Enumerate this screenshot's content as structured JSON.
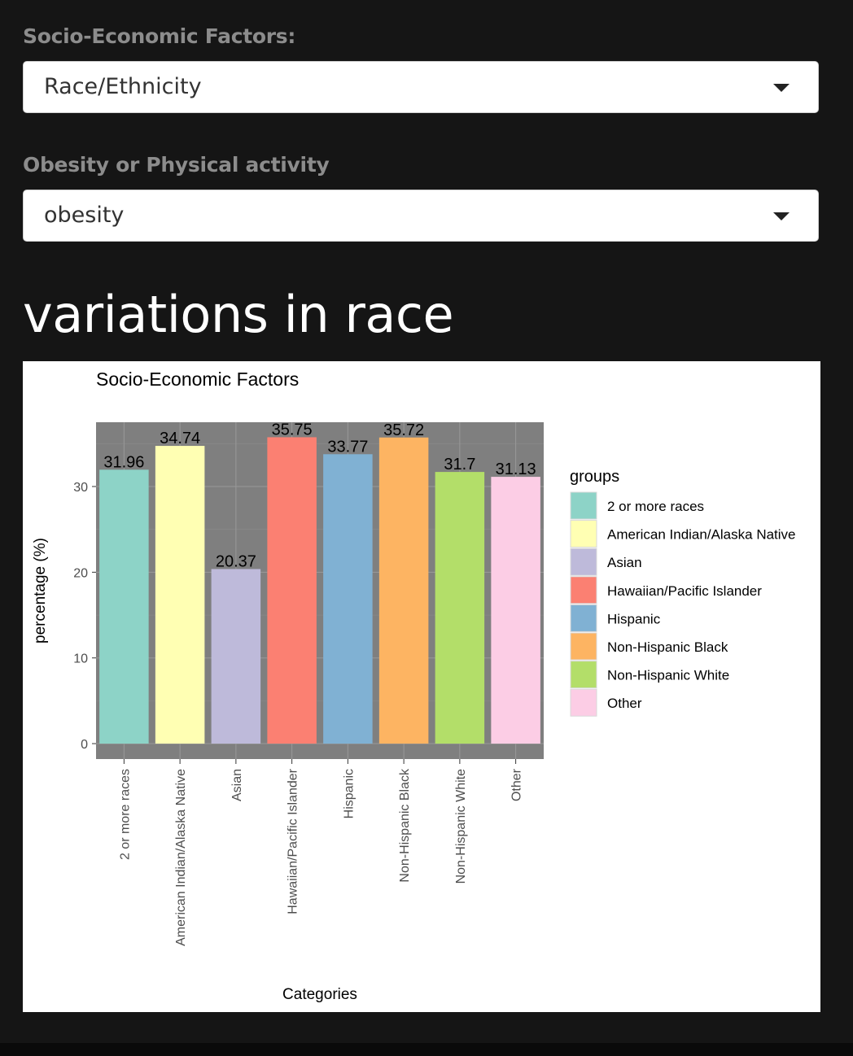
{
  "filters": {
    "factor_label": "Socio-Economic Factors:",
    "factor_value": "Race/Ethnicity",
    "measure_label": "Obesity or Physical activity",
    "measure_value": "obesity"
  },
  "heading": "variations in race",
  "chart_data": {
    "type": "bar",
    "title": "Socio-Economic Factors",
    "xlabel": "Categories",
    "ylabel": "percentage (%)",
    "categories": [
      "2 or more races",
      "American Indian/Alaska Native",
      "Asian",
      "Hawaiian/Pacific Islander",
      "Hispanic",
      "Non-Hispanic Black",
      "Non-Hispanic White",
      "Other"
    ],
    "values": [
      31.96,
      34.74,
      20.37,
      35.75,
      33.77,
      35.72,
      31.7,
      31.13
    ],
    "value_labels": [
      "31.96",
      "34.74",
      "20.37",
      "35.75",
      "33.77",
      "35.72",
      "31.7",
      "31.13"
    ],
    "colors": [
      "#8DD3C7",
      "#FFFFB3",
      "#BEBADA",
      "#FB8072",
      "#80B1D3",
      "#FDB462",
      "#B3DE69",
      "#FCCDE5"
    ],
    "yticks": [
      0,
      10,
      20,
      30
    ],
    "ylim": [
      -1.8,
      37.5
    ],
    "grid": true,
    "panel_background": "#7f7f7f",
    "legend": {
      "title": "groups",
      "position": "right"
    }
  }
}
